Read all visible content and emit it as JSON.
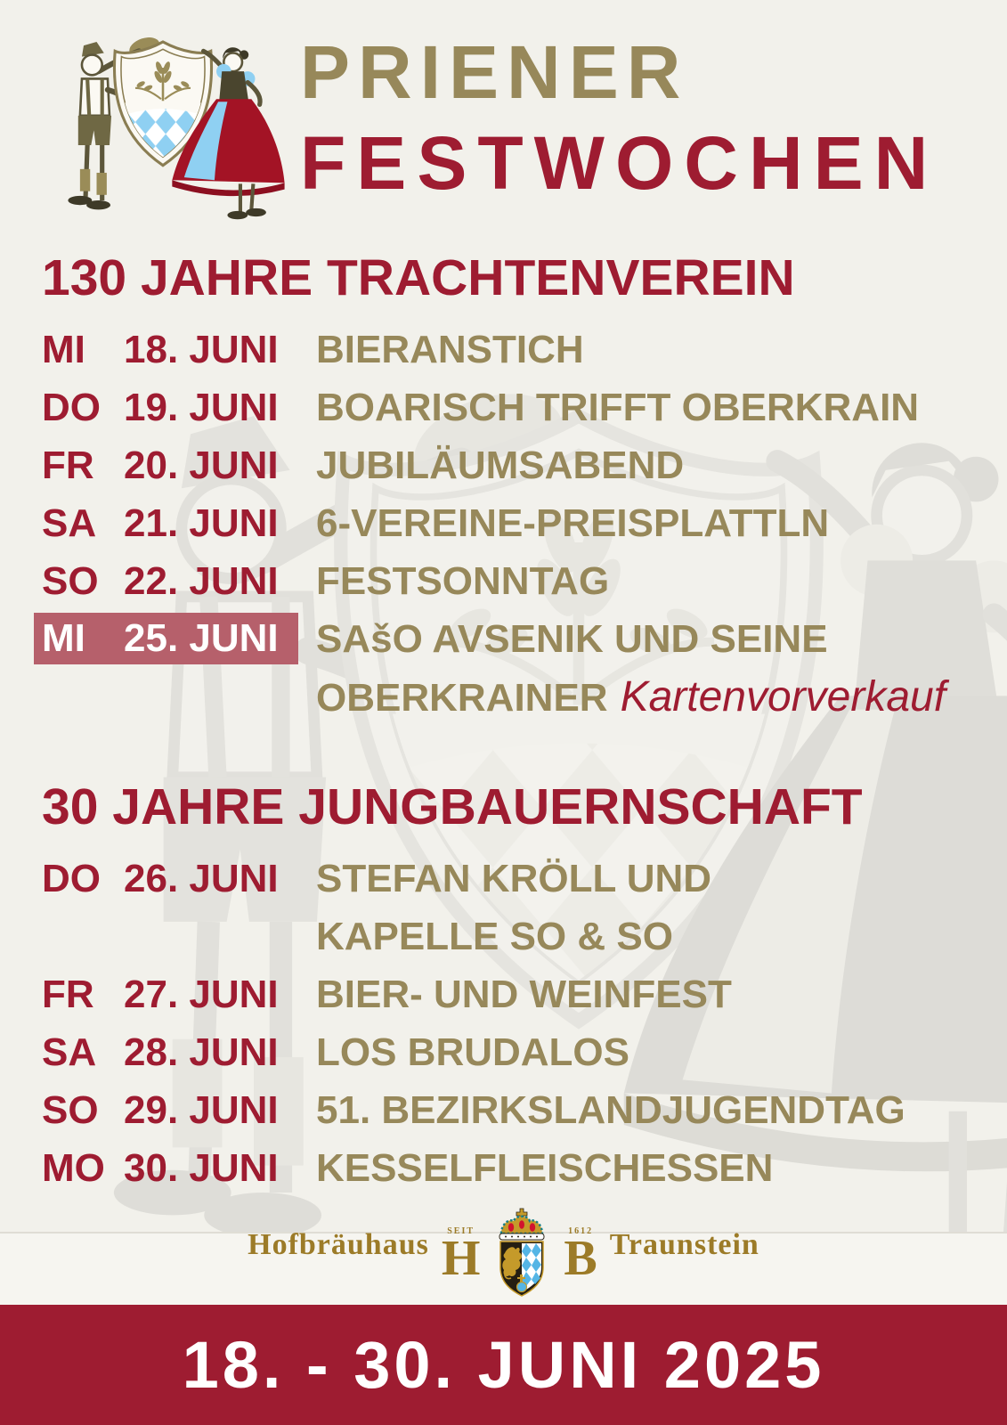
{
  "header": {
    "title_line1": "PRIENER",
    "title_line2": "FESTWOCHEN"
  },
  "sections": [
    {
      "heading": "130 JAHRE TRACHTENVEREIN",
      "events": [
        {
          "day": "MI",
          "date": "18. JUNI",
          "event": "BIERANSTICH",
          "highlight": false
        },
        {
          "day": "DO",
          "date": "19. JUNI",
          "event": "BOARISCH TRIFFT OBERKRAIN",
          "highlight": false
        },
        {
          "day": "FR",
          "date": "20. JUNI",
          "event": "JUBILÄUMSABEND",
          "highlight": false
        },
        {
          "day": "SA",
          "date": "21. JUNI",
          "event": "6-VEREINE-PREISPLATTLN",
          "highlight": false
        },
        {
          "day": "SO",
          "date": "22. JUNI",
          "event": "FESTSONNTAG",
          "highlight": false
        },
        {
          "day": "MI",
          "date": "25. JUNI",
          "event": "SAšO AVSENIK UND SEINE",
          "event_line2": "OBERKRAINER",
          "note": "Kartenvorverkauf",
          "highlight": true
        }
      ]
    },
    {
      "heading": "30 JAHRE JUNGBAUERNSCHAFT",
      "events": [
        {
          "day": "DO",
          "date": "26. JUNI",
          "event": "STEFAN KRÖLL UND",
          "event_line2": "KAPELLE SO & SO",
          "highlight": false
        },
        {
          "day": "FR",
          "date": "27. JUNI",
          "event": "BIER- UND WEINFEST",
          "highlight": false
        },
        {
          "day": "SA",
          "date": "28. JUNI",
          "event": "LOS BRUDALOS",
          "highlight": false
        },
        {
          "day": "SO",
          "date": "29. JUNI",
          "event": "51. BEZIRKSLANDJUGENDTAG",
          "highlight": false
        },
        {
          "day": "MO",
          "date": "30. JUNI",
          "event": "KESSELFLEISCHESSEN",
          "highlight": false
        }
      ]
    }
  ],
  "footer": {
    "brand_left": "Hofbräuhaus",
    "brand_right": "Traunstein",
    "monogram_left": "H",
    "monogram_right": "B",
    "seit_label": "SEIT",
    "founded_year": "1612",
    "banner_text": "18. - 30. JUNI 2025"
  },
  "colors": {
    "accent_red": "#9E1C31",
    "accent_olive": "#97885A",
    "highlight_bg": "#B6606B",
    "brand_gold": "#9C7B28",
    "bavarian_blue": "#8FD0F2",
    "background": "#F2F1EB",
    "banner_bg": "#9E1C31"
  }
}
